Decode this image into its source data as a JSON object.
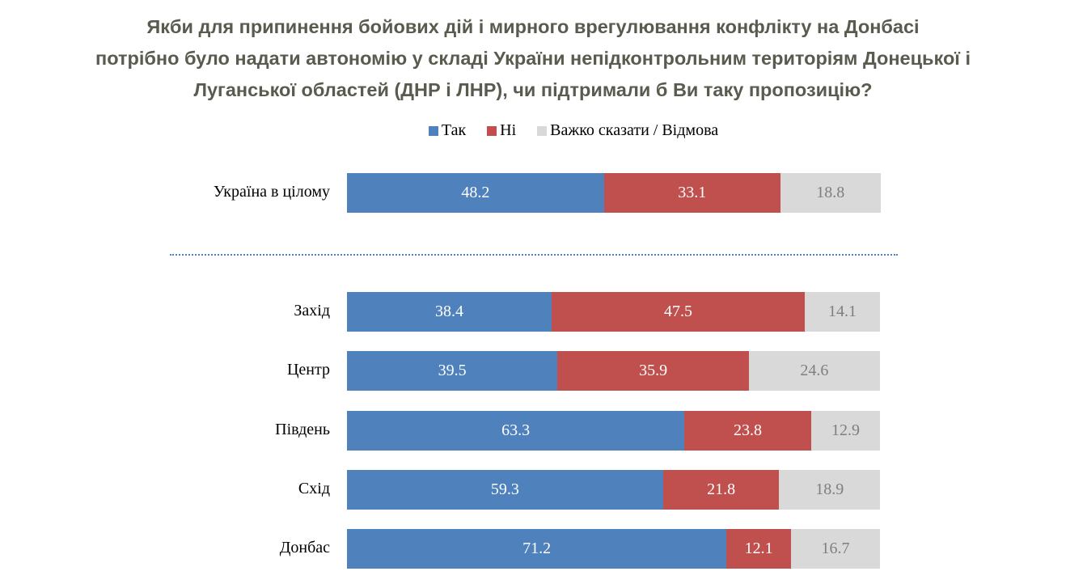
{
  "chart_data": {
    "type": "bar",
    "orientation": "horizontal",
    "stacked": true,
    "title_lines": [
      "Якби для припинення бойових дій і мирного врегулювання конфлікту на Донбасі",
      "потрібно було надати автономію у складі України непідконтрольним територіям Донецької і",
      "Луганської областей (ДНР і ЛНР), чи підтримали б Ви таку пропозицію?"
    ],
    "legend_position": "top",
    "grid": false,
    "xlim": [
      0,
      100
    ],
    "categories": [
      "Україна в цілому",
      "Захід",
      "Центр",
      "Південь",
      "Схід",
      "Донбас"
    ],
    "series": [
      {
        "name": "Так",
        "color": "#4f81bd",
        "label_color": "#ffffff",
        "values": [
          48.2,
          38.4,
          39.5,
          63.3,
          59.3,
          71.2
        ]
      },
      {
        "name": "Ні",
        "color": "#c0504d",
        "label_color": "#ffffff",
        "values": [
          33.1,
          47.5,
          35.9,
          23.8,
          21.8,
          12.1
        ]
      },
      {
        "name": "Важко сказати / Відмова",
        "color": "#d9d9d9",
        "label_color": "#7f7f7f",
        "values": [
          18.8,
          14.1,
          24.6,
          12.9,
          18.9,
          16.7
        ]
      }
    ]
  }
}
